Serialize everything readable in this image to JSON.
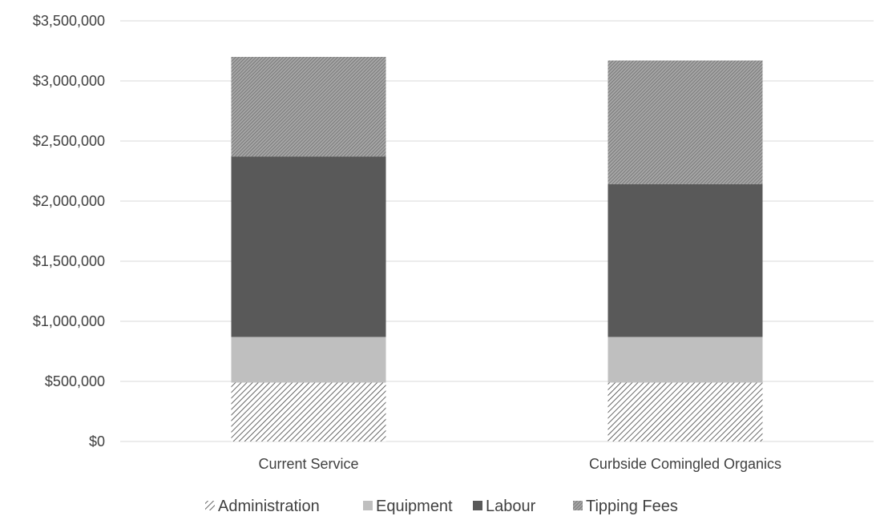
{
  "chart_data": {
    "type": "bar",
    "stacked": true,
    "title": "",
    "xlabel": "",
    "ylabel": "",
    "ylim": [
      0,
      3500000
    ],
    "yticks": [
      0,
      500000,
      1000000,
      1500000,
      2000000,
      2500000,
      3000000,
      3500000
    ],
    "ytick_labels": [
      "$0",
      "$500,000",
      "$1,000,000",
      "$1,500,000",
      "$2,000,000",
      "$2,500,000",
      "$3,000,000",
      "$3,500,000"
    ],
    "grid": true,
    "legend_position": "bottom",
    "categories": [
      "Current Service",
      "Curbside Comingled Organics"
    ],
    "series": [
      {
        "name": "Administration",
        "values": [
          490000,
          490000
        ],
        "color": "#404040",
        "pattern": "diagonal-light"
      },
      {
        "name": "Equipment",
        "values": [
          380000,
          380000
        ],
        "color": "#bfbfbf",
        "pattern": "solid"
      },
      {
        "name": "Labour",
        "values": [
          1500000,
          1270000
        ],
        "color": "#595959",
        "pattern": "solid"
      },
      {
        "name": "Tipping Fees",
        "values": [
          830000,
          1030000
        ],
        "color": "#7f7f7f",
        "pattern": "diagonal-dense"
      }
    ]
  }
}
